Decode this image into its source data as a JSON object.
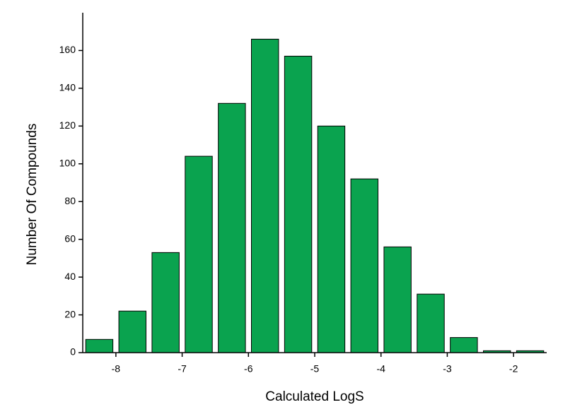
{
  "chart_data": {
    "type": "histogram",
    "x_label": "Calculated LogS",
    "y_label": "Number Of Compounds",
    "bins": [
      -8.5,
      -8,
      -7.5,
      -7,
      -6.5,
      -6,
      -5.5,
      -5,
      -4.5,
      -4,
      -3.5,
      -3,
      -2.5,
      -2,
      -1.5
    ],
    "values": [
      7,
      22,
      53,
      104,
      132,
      166,
      157,
      120,
      92,
      56,
      31,
      8,
      1,
      1
    ],
    "color": "#0aa34f",
    "xlim": [
      -8.5,
      -1.5
    ],
    "xticks": [
      -8,
      -7,
      -6,
      -5,
      -4,
      -3,
      -2
    ],
    "ylim": [
      0,
      180
    ],
    "yticks": [
      0,
      20,
      40,
      60,
      80,
      100,
      120,
      140,
      160
    ],
    "grid": false
  }
}
